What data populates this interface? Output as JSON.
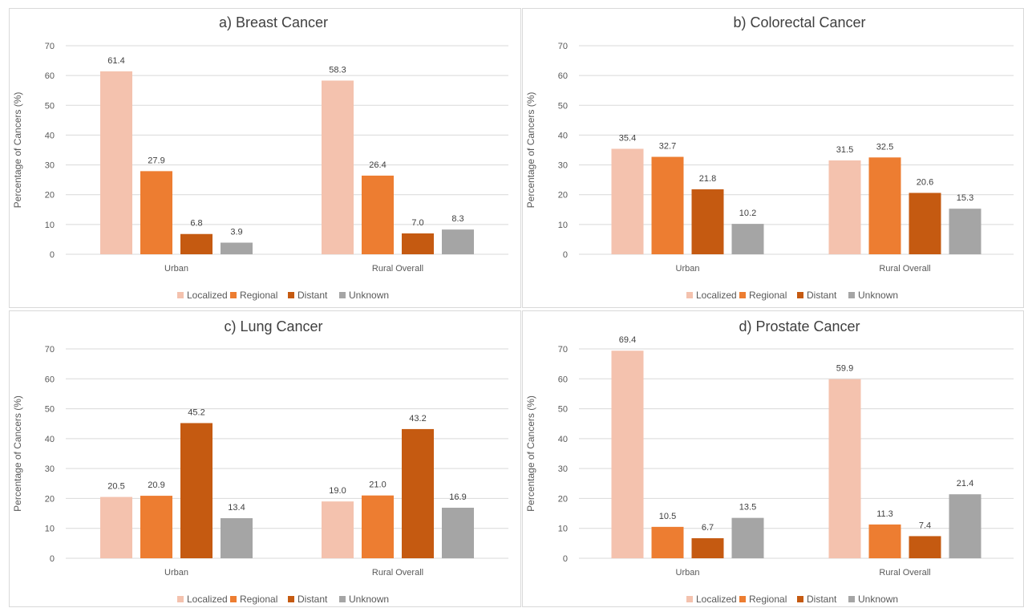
{
  "chart_data": [
    {
      "type": "bar",
      "title": "a) Breast Cancer",
      "ylabel": "Percentage of Cancers (%)",
      "ylim": [
        0,
        70
      ],
      "yticks": [
        0,
        10,
        20,
        30,
        40,
        50,
        60,
        70
      ],
      "categories": [
        "Urban",
        "Rural Overall"
      ],
      "series": [
        {
          "name": "Localized",
          "color": "#f4c2ae",
          "values": [
            61.4,
            58.3
          ],
          "labels": [
            "61.4",
            "58.3"
          ]
        },
        {
          "name": "Regional",
          "color": "#ed7d31",
          "values": [
            27.9,
            26.4
          ],
          "labels": [
            "27.9",
            "26.4"
          ]
        },
        {
          "name": "Distant",
          "color": "#c55a11",
          "values": [
            6.8,
            7.0
          ],
          "labels": [
            "6.8",
            "7.0"
          ]
        },
        {
          "name": "Unknown",
          "color": "#a5a5a5",
          "values": [
            3.9,
            8.3
          ],
          "labels": [
            "3.9",
            "8.3"
          ]
        }
      ],
      "legend": "bottom",
      "grid": true
    },
    {
      "type": "bar",
      "title": "b) Colorectal Cancer",
      "ylabel": "Percentage of Cancers (%)",
      "ylim": [
        0,
        70
      ],
      "yticks": [
        0,
        10,
        20,
        30,
        40,
        50,
        60,
        70
      ],
      "categories": [
        "Urban",
        "Rural Overall"
      ],
      "series": [
        {
          "name": "Localized",
          "color": "#f4c2ae",
          "values": [
            35.4,
            31.5
          ],
          "labels": [
            "35.4",
            "31.5"
          ]
        },
        {
          "name": "Regional",
          "color": "#ed7d31",
          "values": [
            32.7,
            32.5
          ],
          "labels": [
            "32.7",
            "32.5"
          ]
        },
        {
          "name": "Distant",
          "color": "#c55a11",
          "values": [
            21.8,
            20.6
          ],
          "labels": [
            "21.8",
            "20.6"
          ]
        },
        {
          "name": "Unknown",
          "color": "#a5a5a5",
          "values": [
            10.2,
            15.3
          ],
          "labels": [
            "10.2",
            "15.3"
          ]
        }
      ],
      "legend": "bottom",
      "grid": true
    },
    {
      "type": "bar",
      "title": "c) Lung Cancer",
      "ylabel": "Percentage of Cancers (%)",
      "ylim": [
        0,
        70
      ],
      "yticks": [
        0,
        10,
        20,
        30,
        40,
        50,
        60,
        70
      ],
      "categories": [
        "Urban",
        "Rural Overall"
      ],
      "series": [
        {
          "name": "Localized",
          "color": "#f4c2ae",
          "values": [
            20.5,
            19.0
          ],
          "labels": [
            "20.5",
            "19.0"
          ]
        },
        {
          "name": "Regional",
          "color": "#ed7d31",
          "values": [
            20.9,
            21.0
          ],
          "labels": [
            "20.9",
            "21.0"
          ]
        },
        {
          "name": "Distant",
          "color": "#c55a11",
          "values": [
            45.2,
            43.2
          ],
          "labels": [
            "45.2",
            "43.2"
          ]
        },
        {
          "name": "Unknown",
          "color": "#a5a5a5",
          "values": [
            13.4,
            16.9
          ],
          "labels": [
            "13.4",
            "16.9"
          ]
        }
      ],
      "legend": "bottom",
      "grid": true
    },
    {
      "type": "bar",
      "title": "d) Prostate Cancer",
      "ylabel": "Percentage of Cancers (%)",
      "ylim": [
        0,
        70
      ],
      "yticks": [
        0,
        10,
        20,
        30,
        40,
        50,
        60,
        70
      ],
      "categories": [
        "Urban",
        "Rural Overall"
      ],
      "series": [
        {
          "name": "Localized",
          "color": "#f4c2ae",
          "values": [
            69.4,
            59.9
          ],
          "labels": [
            "69.4",
            "59.9"
          ]
        },
        {
          "name": "Regional",
          "color": "#ed7d31",
          "values": [
            10.5,
            11.3
          ],
          "labels": [
            "10.5",
            "11.3"
          ]
        },
        {
          "name": "Distant",
          "color": "#c55a11",
          "values": [
            6.7,
            7.4
          ],
          "labels": [
            "6.7",
            "7.4"
          ]
        },
        {
          "name": "Unknown",
          "color": "#a5a5a5",
          "values": [
            13.5,
            21.4
          ],
          "labels": [
            "13.5",
            "21.4"
          ]
        }
      ],
      "legend": "bottom",
      "grid": true
    }
  ]
}
